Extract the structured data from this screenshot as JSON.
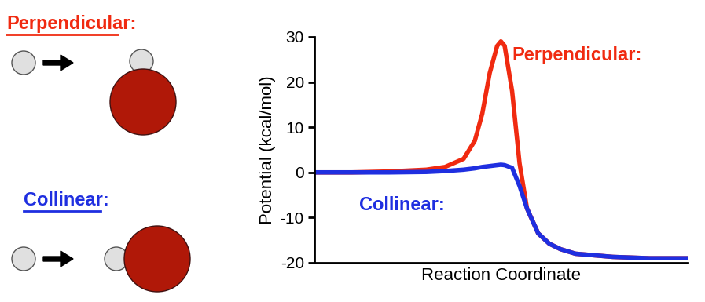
{
  "chart_data": {
    "type": "line",
    "xlabel": "Reaction Coordinate",
    "ylabel": "Potential (kcal/mol)",
    "x": [
      0,
      10,
      20,
      30,
      35,
      40,
      43,
      45,
      47,
      49,
      50,
      51,
      53,
      55,
      57,
      60,
      63,
      66,
      70,
      80,
      90,
      100
    ],
    "xlim": [
      0,
      100
    ],
    "ylim": [
      -20,
      30
    ],
    "yticks": [
      -20,
      -10,
      0,
      10,
      20,
      30
    ],
    "tick_labels": "y",
    "series": [
      {
        "name": "Perpendicular:",
        "color": "#f02a10",
        "values": [
          0,
          0,
          0.2,
          0.6,
          1.2,
          3,
          7,
          13,
          22,
          28,
          29,
          28,
          18,
          2,
          -8,
          -13.5,
          -15.8,
          -17,
          -18,
          -18.7,
          -19,
          -19
        ]
      },
      {
        "name": "Collinear:",
        "color": "#1f2fe0",
        "values": [
          0,
          0,
          0,
          0.1,
          0.3,
          0.6,
          0.9,
          1.2,
          1.4,
          1.6,
          1.7,
          1.6,
          1.0,
          -3,
          -8,
          -13.5,
          -15.8,
          -17,
          -18,
          -18.7,
          -19,
          -19
        ]
      }
    ]
  }
}
